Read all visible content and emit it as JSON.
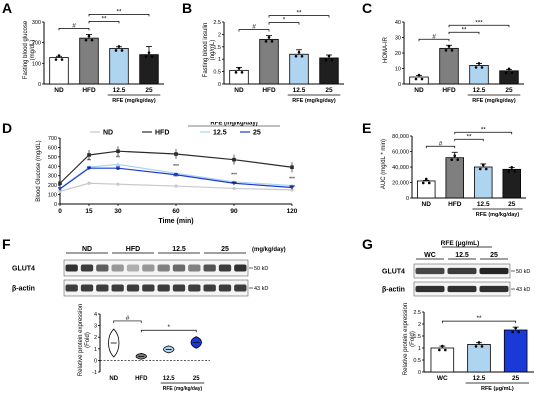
{
  "panels": {
    "A": "A",
    "B": "B",
    "C": "C",
    "D": "D",
    "E": "E",
    "F": "F",
    "G": "G"
  },
  "group_labels": [
    "ND",
    "HFD",
    "12.5",
    "25"
  ],
  "rfe_label": "RFE (mg/kg/day)",
  "chart_data": [
    {
      "id": "A",
      "type": "bar",
      "ylabel": "Fasting blood glucose\n(mg/dL)",
      "categories": [
        "ND",
        "HFD",
        "12.5",
        "25"
      ],
      "values": [
        128,
        222,
        172,
        142
      ],
      "errors": [
        6,
        18,
        8,
        40
      ],
      "colors": [
        "#ffffff",
        "#7f7f7f",
        "#aed4f0",
        "#1f1f1f"
      ],
      "ylim": [
        0,
        300
      ],
      "yticks": [
        0,
        100,
        200,
        300
      ],
      "sig": [
        {
          "label": "#"
        },
        {
          "label": "**"
        },
        {
          "label": "**"
        }
      ],
      "group_label": "RFE (mg/kg/day)"
    },
    {
      "id": "B",
      "type": "bar",
      "ylabel": "Fasting blood insulin\n(ng/mL)",
      "categories": [
        "ND",
        "HFD",
        "12.5",
        "25"
      ],
      "values": [
        0.55,
        1.8,
        1.2,
        1.05
      ],
      "errors": [
        0.12,
        0.15,
        0.18,
        0.12
      ],
      "colors": [
        "#ffffff",
        "#7f7f7f",
        "#aed4f0",
        "#1f1f1f"
      ],
      "ylim": [
        0,
        2.5
      ],
      "yticks": [
        0.0,
        0.5,
        1.0,
        1.5,
        2.0,
        2.5
      ],
      "sig": [
        {
          "label": "#"
        },
        {
          "label": "*"
        },
        {
          "label": "**"
        }
      ],
      "group_label": "RFE (mg/kg/day)"
    },
    {
      "id": "C",
      "type": "bar",
      "ylabel": "HOMA-IR",
      "categories": [
        "ND",
        "HFD",
        "12.5",
        "25"
      ],
      "values": [
        4.5,
        23,
        12,
        8.5
      ],
      "errors": [
        1,
        2,
        1.2,
        0.8
      ],
      "colors": [
        "#ffffff",
        "#7f7f7f",
        "#aed4f0",
        "#1f1f1f"
      ],
      "ylim": [
        0,
        40
      ],
      "yticks": [
        0,
        10,
        20,
        30,
        40
      ],
      "sig": [
        {
          "label": "#"
        },
        {
          "label": "**"
        },
        {
          "label": "***"
        }
      ],
      "group_label": "RFE (mg/kg/day)"
    },
    {
      "id": "D",
      "type": "line",
      "xlabel": "Time (min)",
      "ylabel": "Blood Glucose (mg/dL)",
      "x": [
        0,
        15,
        30,
        60,
        90,
        120
      ],
      "xlim": [
        0,
        120
      ],
      "xticks": [
        0,
        15,
        30,
        60,
        90,
        120
      ],
      "ylim": [
        0,
        700
      ],
      "yticks": [
        0,
        100,
        200,
        300,
        400,
        500,
        600,
        700
      ],
      "legend_title": "RFE (mg/kg/day)",
      "series": [
        {
          "name": "ND",
          "values": [
            135,
            220,
            210,
            190,
            165,
            150
          ],
          "color": "#c8c8c8",
          "marker": "circle"
        },
        {
          "name": "HFD",
          "values": [
            220,
            520,
            560,
            530,
            470,
            390
          ],
          "color": "#2b2b2b",
          "marker": "square"
        },
        {
          "name": "12.5",
          "values": [
            165,
            390,
            420,
            325,
            235,
            195
          ],
          "color": "#aed4f0",
          "marker": "triangle"
        },
        {
          "name": "25",
          "values": [
            160,
            380,
            380,
            310,
            220,
            175
          ],
          "color": "#1a3ad8",
          "marker": "triangle-down"
        }
      ],
      "annotations": [
        "**",
        "**",
        "**",
        "**",
        "***",
        "***",
        "***",
        "***",
        "***",
        "***"
      ]
    },
    {
      "id": "E",
      "type": "bar",
      "ylabel": "AUC (mg/dL * min)",
      "categories": [
        "ND",
        "HFD",
        "12.5",
        "25"
      ],
      "values": [
        22000,
        52000,
        40000,
        37000
      ],
      "errors": [
        800,
        7000,
        4000,
        2500
      ],
      "colors": [
        "#ffffff",
        "#7f7f7f",
        "#aed4f0",
        "#1f1f1f"
      ],
      "ylim": [
        0,
        80000
      ],
      "yticks": [
        0,
        20000,
        40000,
        60000,
        80000
      ],
      "ytick_labels": [
        "0",
        "20,000",
        "40,000",
        "60,000",
        "80,000"
      ],
      "sig": [
        {
          "label": "#"
        },
        {
          "label": "**"
        },
        {
          "label": "**"
        }
      ],
      "group_label": "RFE (mg/kg/day)"
    },
    {
      "id": "F",
      "type": "violin",
      "ylabel": "Relative protein expression\n(Fold)",
      "categories": [
        "ND",
        "HFD",
        "12.5",
        "25"
      ],
      "values": [
        1.5,
        0.35,
        0.95,
        1.55
      ],
      "colors": [
        "#ffffff",
        "#7f7f7f",
        "#aed4f0",
        "#1a3ad8"
      ],
      "ylim": [
        -1,
        4
      ],
      "yticks": [
        -1,
        0,
        1,
        2,
        3,
        4
      ],
      "sig": [
        {
          "label": "#"
        },
        {
          "label": "*"
        }
      ],
      "group_label": "RFE (mg/kg/day)"
    },
    {
      "id": "G",
      "type": "bar",
      "ylabel": "Relative protein expression\n(Fold)",
      "categories": [
        "WC",
        "12.5",
        "25"
      ],
      "values": [
        1.0,
        1.15,
        1.75
      ],
      "errors": [
        0.08,
        0.07,
        0.12
      ],
      "colors": [
        "#ffffff",
        "#aed4f0",
        "#1a3ad8"
      ],
      "ylim": [
        0,
        2.5
      ],
      "yticks": [
        0.0,
        0.5,
        1.0,
        1.5,
        2.0,
        2.5
      ],
      "sig": [
        {
          "label": "**"
        }
      ],
      "group_label": "RFE (μg/mL)"
    }
  ],
  "blot_F": {
    "groups": [
      "ND",
      "HFD",
      "12.5",
      "25"
    ],
    "unit": "(mg/kg/day)",
    "rows": [
      "GLUT4",
      "β-actin"
    ],
    "sizes": [
      "50 kD",
      "43 kD"
    ]
  },
  "blot_G": {
    "title": "RFE (μg/mL)",
    "groups": [
      "WC",
      "12.5",
      "25"
    ],
    "rows": [
      "GLUT4",
      "β-actin"
    ],
    "sizes": [
      "50 kD",
      "43 kD"
    ]
  }
}
